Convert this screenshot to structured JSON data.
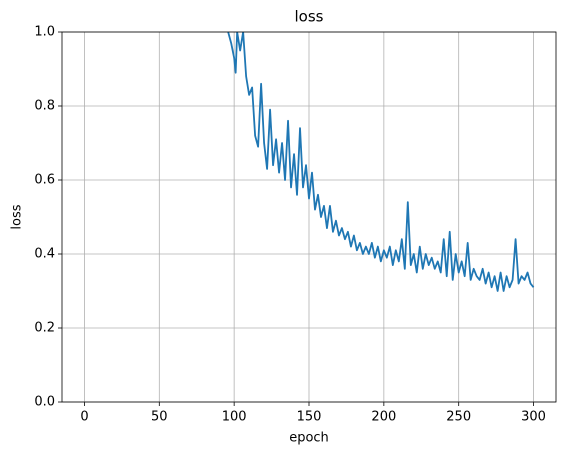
{
  "chart_data": {
    "type": "line",
    "title": "loss",
    "x_label": "epoch",
    "y_label": "loss",
    "x": [
      96,
      98,
      100,
      101,
      102,
      104,
      106,
      108,
      110,
      112,
      114,
      116,
      118,
      120,
      122,
      124,
      126,
      128,
      130,
      132,
      134,
      136,
      138,
      140,
      142,
      144,
      146,
      148,
      150,
      152,
      154,
      156,
      158,
      160,
      162,
      164,
      166,
      168,
      170,
      172,
      174,
      176,
      178,
      180,
      182,
      184,
      186,
      188,
      190,
      192,
      194,
      196,
      198,
      200,
      202,
      204,
      206,
      208,
      210,
      212,
      214,
      216,
      218,
      220,
      222,
      224,
      226,
      228,
      230,
      232,
      234,
      236,
      238,
      240,
      242,
      244,
      246,
      248,
      250,
      252,
      254,
      256,
      258,
      260,
      262,
      264,
      266,
      268,
      270,
      272,
      274,
      276,
      278,
      280,
      282,
      284,
      286,
      288,
      290,
      292,
      294,
      296,
      298,
      300
    ],
    "series": [
      {
        "name": "loss",
        "color": "#1f77b4",
        "values": [
          1.0,
          0.97,
          0.93,
          0.89,
          1.0,
          0.95,
          1.0,
          0.88,
          0.83,
          0.85,
          0.72,
          0.69,
          0.86,
          0.7,
          0.63,
          0.79,
          0.64,
          0.71,
          0.62,
          0.7,
          0.6,
          0.76,
          0.58,
          0.67,
          0.56,
          0.74,
          0.58,
          0.64,
          0.55,
          0.62,
          0.52,
          0.56,
          0.5,
          0.53,
          0.47,
          0.53,
          0.46,
          0.49,
          0.45,
          0.47,
          0.44,
          0.46,
          0.42,
          0.45,
          0.41,
          0.43,
          0.4,
          0.42,
          0.4,
          0.43,
          0.39,
          0.42,
          0.38,
          0.41,
          0.39,
          0.42,
          0.37,
          0.41,
          0.38,
          0.44,
          0.36,
          0.54,
          0.37,
          0.4,
          0.35,
          0.42,
          0.36,
          0.4,
          0.37,
          0.39,
          0.36,
          0.38,
          0.35,
          0.44,
          0.34,
          0.46,
          0.33,
          0.4,
          0.35,
          0.38,
          0.34,
          0.43,
          0.33,
          0.36,
          0.34,
          0.33,
          0.36,
          0.32,
          0.35,
          0.31,
          0.34,
          0.3,
          0.35,
          0.3,
          0.34,
          0.31,
          0.33,
          0.44,
          0.32,
          0.34,
          0.33,
          0.35,
          0.32,
          0.31
        ]
      }
    ],
    "xlim": [
      -15,
      315
    ],
    "ylim": [
      0,
      1
    ],
    "xticks": [
      0,
      50,
      100,
      150,
      200,
      250,
      300
    ],
    "yticks": [
      {
        "value": 0,
        "label": "0.0"
      },
      0.2,
      0.4,
      0.6,
      0.8,
      {
        "value": 1,
        "label": "1.0"
      }
    ],
    "grid": true
  }
}
